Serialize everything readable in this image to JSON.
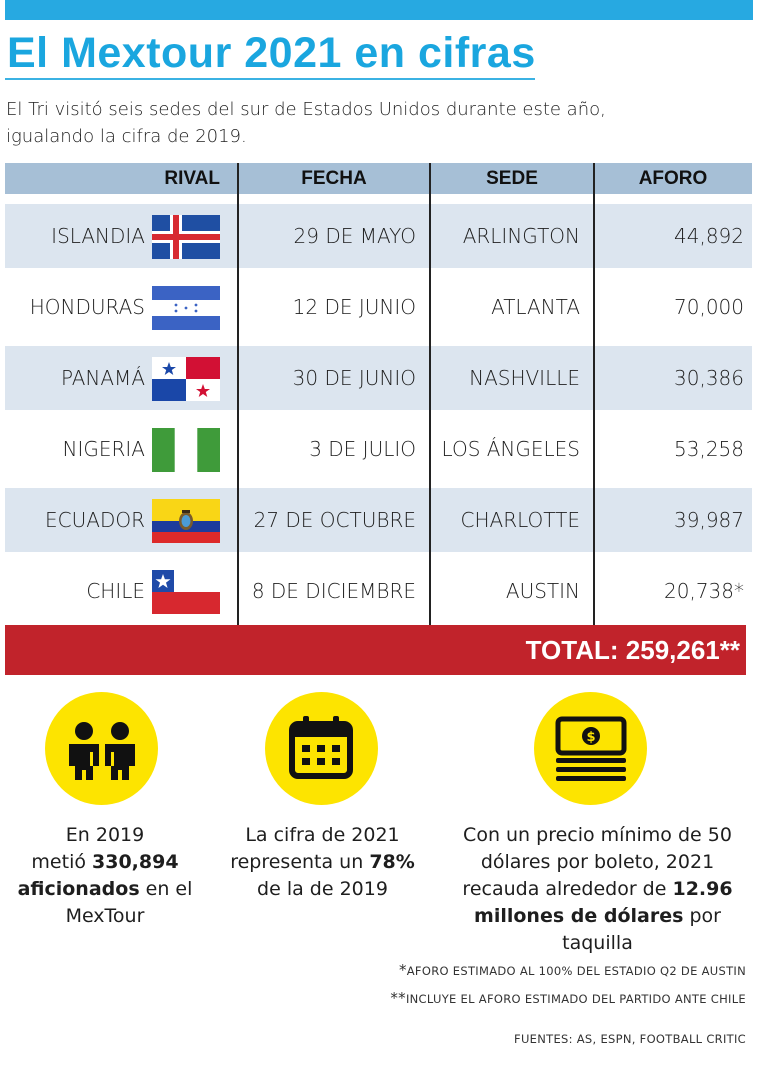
{
  "header": {
    "title": "El Mextour 2021 en cifras",
    "intro_line1": "El Tri visitó seis sedes del sur de Estados Unidos durante este año,",
    "intro_line2": "igualando la cifra de 2019."
  },
  "table": {
    "headers": {
      "rival": "RIVAL",
      "fecha": "FECHA",
      "sede": "SEDE",
      "aforo": "AFORO"
    },
    "rows": [
      {
        "rival": "ISLANDIA",
        "flag": "iceland-flag-icon",
        "fecha": "29 DE MAYO",
        "sede": "ARLINGTON",
        "aforo": "44,892"
      },
      {
        "rival": "HONDURAS",
        "flag": "honduras-flag-icon",
        "fecha": "12 DE JUNIO",
        "sede": "ATLANTA",
        "aforo": "70,000"
      },
      {
        "rival": "PANAMÁ",
        "flag": "panama-flag-icon",
        "fecha": "30 DE JUNIO",
        "sede": "NASHVILLE",
        "aforo": "30,386"
      },
      {
        "rival": "NIGERIA",
        "flag": "nigeria-flag-icon",
        "fecha": "3 DE JULIO",
        "sede": "LOS ÁNGELES",
        "aforo": "53,258"
      },
      {
        "rival": "ECUADOR",
        "flag": "ecuador-flag-icon",
        "fecha": "27 DE OCTUBRE",
        "sede": "CHARLOTTE",
        "aforo": "39,987"
      },
      {
        "rival": "CHILE",
        "flag": "chile-flag-icon",
        "fecha": "8 DE DICIEMBRE",
        "sede": "AUSTIN",
        "aforo": "20,738*"
      }
    ],
    "total": "TOTAL: 259,261**"
  },
  "stats": {
    "fans": {
      "icon": "people-icon",
      "l1": "En 2019",
      "l2a": "metió ",
      "l2b": "330,894",
      "l3a": "aficionados",
      "l3b": " en el",
      "l4": "MexTour"
    },
    "ratio": {
      "icon": "calendar-icon",
      "l1": "La cifra de 2021",
      "l2a": "representa un ",
      "l2b": "78%",
      "l3": "de la de 2019"
    },
    "money": {
      "icon": "money-icon",
      "l1": "Con un precio mínimo de 50",
      "l2": "dólares por boleto, 2021",
      "l3a": "recauda alrededor de ",
      "l3b": "12.96",
      "l4a": "millones de dólares",
      "l4b": " por taquilla"
    }
  },
  "footnotes": {
    "note1_star": "*",
    "note1": "AFORO ESTIMADO AL 100% DEL ESTADIO Q2 DE AUSTIN",
    "note2_star": "**",
    "note2": "INCLUYE EL AFORO ESTIMADO DEL PARTIDO ANTE CHILE",
    "sources": "FUENTES: AS, ESPN, FOOTBALL CRITIC"
  },
  "colors": {
    "accent_blue": "#1aa6df",
    "header_row": "#a6bfd6",
    "shaded_row": "#dce5ef",
    "total_red": "#c1232b",
    "circle_yellow": "#fde400"
  }
}
